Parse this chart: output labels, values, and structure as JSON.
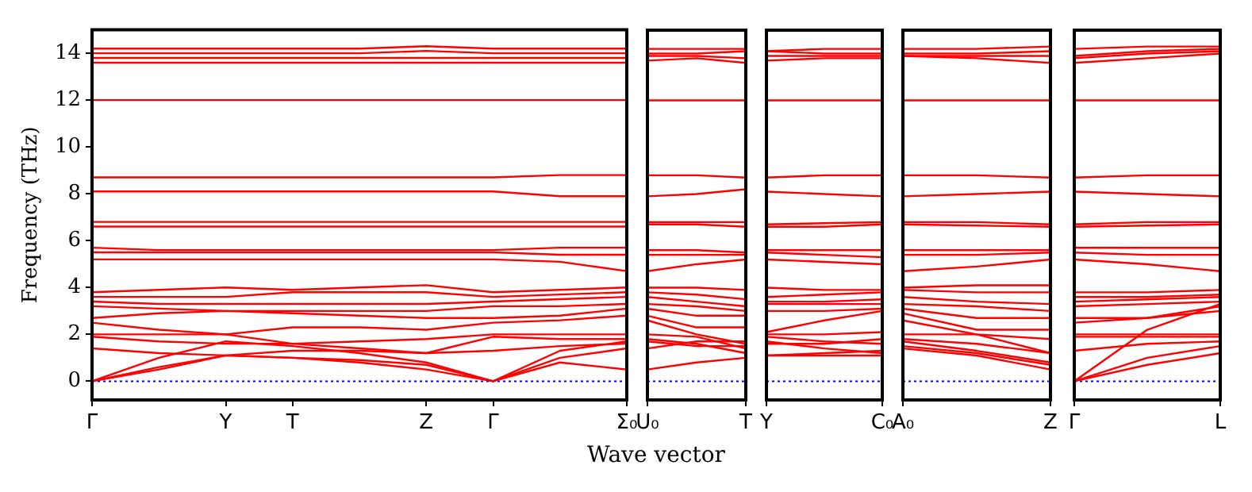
{
  "chart_data": [
    {
      "type": "line",
      "ylabel": "Frequency (THz)",
      "xlabel": "Wave vector",
      "grid": false,
      "marker": "none",
      "line_style": "solid",
      "categories": [
        "Γ",
        null,
        "Y",
        "T",
        null,
        "Z",
        "Γ",
        null,
        "Σ₀"
      ],
      "ylim": [
        -0.8,
        15
      ],
      "yticks": [
        0,
        2,
        4,
        6,
        8,
        10,
        12,
        14
      ],
      "ref_lines": [
        {
          "axis": "y",
          "value": 0,
          "color": "#0000ff",
          "line_style": "dotted"
        }
      ],
      "series": [
        {
          "color": "#ff0000",
          "values": [
            14.2,
            14.2,
            14.2,
            14.2,
            14.2,
            14.3,
            14.2,
            14.2,
            14.2
          ]
        },
        {
          "color": "#ff0000",
          "values": [
            14.0,
            14.0,
            14.0,
            14.0,
            14.0,
            14.1,
            14.0,
            14.0,
            14.0
          ]
        },
        {
          "color": "#ff0000",
          "values": [
            13.8,
            13.8,
            13.8,
            13.8,
            13.8,
            13.8,
            13.8,
            13.8,
            13.8
          ]
        },
        {
          "color": "#ff0000",
          "values": [
            13.6,
            13.6,
            13.6,
            13.6,
            13.6,
            13.6,
            13.6,
            13.6,
            13.6
          ]
        },
        {
          "color": "#ff0000",
          "values": [
            12,
            12,
            12,
            12,
            12,
            12,
            12,
            12,
            12
          ]
        },
        {
          "color": "#ff0000",
          "values": [
            8.7,
            8.7,
            8.7,
            8.7,
            8.7,
            8.7,
            8.7,
            8.8,
            8.8
          ]
        },
        {
          "color": "#ff0000",
          "values": [
            8.1,
            8.1,
            8.1,
            8.1,
            8.1,
            8.1,
            8.1,
            7.9,
            7.9
          ]
        },
        {
          "color": "#ff0000",
          "values": [
            6.8,
            6.8,
            6.8,
            6.8,
            6.8,
            6.8,
            6.8,
            6.8,
            6.8
          ]
        },
        {
          "color": "#ff0000",
          "values": [
            6.6,
            6.6,
            6.6,
            6.6,
            6.6,
            6.6,
            6.6,
            6.6,
            6.6
          ]
        },
        {
          "color": "#ff0000",
          "values": [
            5.7,
            5.6,
            5.6,
            5.6,
            5.6,
            5.6,
            5.6,
            5.7,
            5.7
          ]
        },
        {
          "color": "#ff0000",
          "values": [
            5.5,
            5.5,
            5.5,
            5.5,
            5.5,
            5.5,
            5.5,
            5.4,
            5.4
          ]
        },
        {
          "color": "#ff0000",
          "values": [
            5.2,
            5.2,
            5.2,
            5.2,
            5.2,
            5.2,
            5.2,
            5.1,
            4.7
          ]
        },
        {
          "color": "#ff0000",
          "values": [
            3.8,
            3.9,
            4.0,
            3.9,
            4.0,
            4.1,
            3.8,
            3.9,
            4.0
          ]
        },
        {
          "color": "#ff0000",
          "values": [
            3.6,
            3.6,
            3.6,
            3.8,
            3.8,
            3.8,
            3.6,
            3.7,
            3.8
          ]
        },
        {
          "color": "#ff0000",
          "values": [
            3.4,
            3.3,
            3.3,
            3.3,
            3.3,
            3.3,
            3.4,
            3.5,
            3.6
          ]
        },
        {
          "color": "#ff0000",
          "values": [
            3.2,
            3.1,
            3.0,
            3.0,
            3.0,
            3.0,
            3.2,
            3.2,
            3.3
          ]
        },
        {
          "color": "#ff0000",
          "values": [
            2.7,
            2.9,
            3.0,
            2.9,
            2.8,
            2.7,
            2.7,
            2.8,
            3.1
          ]
        },
        {
          "color": "#ff0000",
          "values": [
            2.5,
            2.2,
            2.0,
            2.3,
            2.3,
            2.2,
            2.5,
            2.6,
            2.8
          ]
        },
        {
          "color": "#ff0000",
          "values": [
            2.0,
            2.0,
            2.0,
            1.6,
            1.7,
            1.8,
            2.0,
            2.0,
            2.0
          ]
        },
        {
          "color": "#ff0000",
          "values": [
            1.9,
            1.7,
            1.6,
            1.6,
            1.4,
            1.2,
            1.9,
            1.8,
            1.8
          ]
        },
        {
          "color": "#ff0000",
          "values": [
            1.4,
            1.2,
            1.1,
            1.3,
            1.3,
            1.2,
            1.3,
            1.5,
            1.6
          ]
        },
        {
          "color": "#ff0000",
          "values": [
            0,
            1.0,
            1.7,
            1.5,
            1.2,
            0.8,
            0,
            1.3,
            1.7
          ]
        },
        {
          "color": "#ff0000",
          "values": [
            0,
            0.6,
            1.1,
            1.0,
            0.9,
            0.7,
            0,
            1.0,
            1.4
          ]
        },
        {
          "color": "#ff0000",
          "values": [
            0,
            0.5,
            1.1,
            1.0,
            0.8,
            0.5,
            0,
            0.8,
            0.5
          ]
        }
      ]
    },
    {
      "type": "line",
      "grid": false,
      "marker": "none",
      "line_style": "solid",
      "tick_labels": "x",
      "categories": [
        "U₀",
        null,
        "T"
      ],
      "ylim": [
        -0.8,
        15
      ],
      "yticks": [
        0,
        2,
        4,
        6,
        8,
        10,
        12,
        14
      ],
      "ref_lines": [
        {
          "axis": "y",
          "value": 0,
          "color": "#0000ff",
          "line_style": "dotted"
        }
      ],
      "series": [
        {
          "color": "#ff0000",
          "values": [
            14.2,
            14.2,
            14.2
          ]
        },
        {
          "color": "#ff0000",
          "values": [
            14.0,
            14.0,
            14.1
          ]
        },
        {
          "color": "#ff0000",
          "values": [
            13.9,
            13.9,
            13.8
          ]
        },
        {
          "color": "#ff0000",
          "values": [
            13.7,
            13.8,
            13.6
          ]
        },
        {
          "color": "#ff0000",
          "values": [
            12,
            12,
            12
          ]
        },
        {
          "color": "#ff0000",
          "values": [
            8.8,
            8.8,
            8.7
          ]
        },
        {
          "color": "#ff0000",
          "values": [
            7.9,
            8.0,
            8.2
          ]
        },
        {
          "color": "#ff0000",
          "values": [
            6.8,
            6.8,
            6.8
          ]
        },
        {
          "color": "#ff0000",
          "values": [
            6.7,
            6.7,
            6.6
          ]
        },
        {
          "color": "#ff0000",
          "values": [
            5.6,
            5.6,
            5.5
          ]
        },
        {
          "color": "#ff0000",
          "values": [
            5.4,
            5.4,
            5.4
          ]
        },
        {
          "color": "#ff0000",
          "values": [
            4.7,
            5.0,
            5.2
          ]
        },
        {
          "color": "#ff0000",
          "values": [
            4.0,
            4.0,
            3.9
          ]
        },
        {
          "color": "#ff0000",
          "values": [
            3.8,
            3.7,
            3.5
          ]
        },
        {
          "color": "#ff0000",
          "values": [
            3.6,
            3.4,
            3.2
          ]
        },
        {
          "color": "#ff0000",
          "values": [
            3.3,
            3.2,
            3.0
          ]
        },
        {
          "color": "#ff0000",
          "values": [
            3.1,
            2.8,
            2.8
          ]
        },
        {
          "color": "#ff0000",
          "values": [
            2.8,
            2.3,
            2.3
          ]
        },
        {
          "color": "#ff0000",
          "values": [
            2.6,
            2.0,
            1.6
          ]
        },
        {
          "color": "#ff0000",
          "values": [
            2.0,
            1.9,
            1.4
          ]
        },
        {
          "color": "#ff0000",
          "values": [
            1.8,
            1.6,
            1.2
          ]
        },
        {
          "color": "#ff0000",
          "values": [
            1.7,
            1.5,
            1.5
          ]
        },
        {
          "color": "#ff0000",
          "values": [
            1.4,
            1.7,
            1.7
          ]
        },
        {
          "color": "#ff0000",
          "values": [
            0.5,
            0.8,
            1.0
          ]
        }
      ]
    },
    {
      "type": "line",
      "grid": false,
      "marker": "none",
      "line_style": "solid",
      "tick_labels": "x",
      "categories": [
        "Y",
        null,
        "C₀"
      ],
      "ylim": [
        -0.8,
        15
      ],
      "yticks": [
        0,
        2,
        4,
        6,
        8,
        10,
        12,
        14
      ],
      "ref_lines": [
        {
          "axis": "y",
          "value": 0,
          "color": "#0000ff",
          "line_style": "dotted"
        }
      ],
      "series": [
        {
          "color": "#ff0000",
          "values": [
            14.1,
            14.2,
            14.2
          ]
        },
        {
          "color": "#ff0000",
          "values": [
            14.1,
            14.0,
            14.0
          ]
        },
        {
          "color": "#ff0000",
          "values": [
            13.9,
            13.9,
            13.9
          ]
        },
        {
          "color": "#ff0000",
          "values": [
            13.7,
            13.8,
            13.8
          ]
        },
        {
          "color": "#ff0000",
          "values": [
            12,
            12,
            12
          ]
        },
        {
          "color": "#ff0000",
          "values": [
            8.7,
            8.8,
            8.8
          ]
        },
        {
          "color": "#ff0000",
          "values": [
            8.1,
            8.0,
            7.9
          ]
        },
        {
          "color": "#ff0000",
          "values": [
            6.7,
            6.75,
            6.8
          ]
        },
        {
          "color": "#ff0000",
          "values": [
            6.6,
            6.6,
            6.7
          ]
        },
        {
          "color": "#ff0000",
          "values": [
            5.6,
            5.6,
            5.6
          ]
        },
        {
          "color": "#ff0000",
          "values": [
            5.5,
            5.4,
            5.3
          ]
        },
        {
          "color": "#ff0000",
          "values": [
            5.2,
            5.1,
            5.0
          ]
        },
        {
          "color": "#ff0000",
          "values": [
            4.0,
            3.9,
            3.9
          ]
        },
        {
          "color": "#ff0000",
          "values": [
            3.6,
            3.7,
            3.8
          ]
        },
        {
          "color": "#ff0000",
          "values": [
            3.4,
            3.4,
            3.5
          ]
        },
        {
          "color": "#ff0000",
          "values": [
            3.3,
            3.3,
            3.3
          ]
        },
        {
          "color": "#ff0000",
          "values": [
            3.0,
            3.0,
            3.1
          ]
        },
        {
          "color": "#ff0000",
          "values": [
            2.1,
            2.6,
            3.0
          ]
        },
        {
          "color": "#ff0000",
          "values": [
            2.0,
            2.0,
            2.1
          ]
        },
        {
          "color": "#ff0000",
          "values": [
            1.9,
            1.7,
            1.6
          ]
        },
        {
          "color": "#ff0000",
          "values": [
            1.6,
            1.6,
            1.8
          ]
        },
        {
          "color": "#ff0000",
          "values": [
            1.7,
            1.4,
            1.2
          ]
        },
        {
          "color": "#ff0000",
          "values": [
            1.1,
            1.2,
            1.3
          ]
        },
        {
          "color": "#ff0000",
          "values": [
            1.1,
            1.1,
            1.1
          ]
        }
      ]
    },
    {
      "type": "line",
      "grid": false,
      "marker": "none",
      "line_style": "solid",
      "tick_labels": "x",
      "categories": [
        "A₀",
        null,
        "Z"
      ],
      "ylim": [
        -0.8,
        15
      ],
      "yticks": [
        0,
        2,
        4,
        6,
        8,
        10,
        12,
        14
      ],
      "ref_lines": [
        {
          "axis": "y",
          "value": 0,
          "color": "#0000ff",
          "line_style": "dotted"
        }
      ],
      "series": [
        {
          "color": "#ff0000",
          "values": [
            14.2,
            14.2,
            14.3
          ]
        },
        {
          "color": "#ff0000",
          "values": [
            14.0,
            14.0,
            14.1
          ]
        },
        {
          "color": "#ff0000",
          "values": [
            13.9,
            13.9,
            13.9
          ]
        },
        {
          "color": "#ff0000",
          "values": [
            13.9,
            13.8,
            13.6
          ]
        },
        {
          "color": "#ff0000",
          "values": [
            12,
            12,
            12
          ]
        },
        {
          "color": "#ff0000",
          "values": [
            8.8,
            8.8,
            8.7
          ]
        },
        {
          "color": "#ff0000",
          "values": [
            7.9,
            8.0,
            8.1
          ]
        },
        {
          "color": "#ff0000",
          "values": [
            6.8,
            6.8,
            6.7
          ]
        },
        {
          "color": "#ff0000",
          "values": [
            6.7,
            6.65,
            6.6
          ]
        },
        {
          "color": "#ff0000",
          "values": [
            5.6,
            5.6,
            5.6
          ]
        },
        {
          "color": "#ff0000",
          "values": [
            5.4,
            5.4,
            5.5
          ]
        },
        {
          "color": "#ff0000",
          "values": [
            4.7,
            4.9,
            5.2
          ]
        },
        {
          "color": "#ff0000",
          "values": [
            4.0,
            4.1,
            4.1
          ]
        },
        {
          "color": "#ff0000",
          "values": [
            3.9,
            3.8,
            3.8
          ]
        },
        {
          "color": "#ff0000",
          "values": [
            3.6,
            3.4,
            3.3
          ]
        },
        {
          "color": "#ff0000",
          "values": [
            3.3,
            3.2,
            3.0
          ]
        },
        {
          "color": "#ff0000",
          "values": [
            3.1,
            2.7,
            2.7
          ]
        },
        {
          "color": "#ff0000",
          "values": [
            2.9,
            2.2,
            2.2
          ]
        },
        {
          "color": "#ff0000",
          "values": [
            2.6,
            2.0,
            1.8
          ]
        },
        {
          "color": "#ff0000",
          "values": [
            2.0,
            2.0,
            1.2
          ]
        },
        {
          "color": "#ff0000",
          "values": [
            1.8,
            1.6,
            1.2
          ]
        },
        {
          "color": "#ff0000",
          "values": [
            1.7,
            1.3,
            0.8
          ]
        },
        {
          "color": "#ff0000",
          "values": [
            1.5,
            1.2,
            0.7
          ]
        },
        {
          "color": "#ff0000",
          "values": [
            1.4,
            1.1,
            0.5
          ]
        }
      ]
    },
    {
      "type": "line",
      "grid": false,
      "marker": "none",
      "line_style": "solid",
      "tick_labels": "x",
      "categories": [
        "Γ",
        null,
        "L"
      ],
      "ylim": [
        -0.8,
        15
      ],
      "yticks": [
        0,
        2,
        4,
        6,
        8,
        10,
        12,
        14
      ],
      "ref_lines": [
        {
          "axis": "y",
          "value": 0,
          "color": "#0000ff",
          "line_style": "dotted"
        }
      ],
      "series": [
        {
          "color": "#ff0000",
          "values": [
            14.2,
            14.3,
            14.3
          ]
        },
        {
          "color": "#ff0000",
          "values": [
            13.9,
            14.1,
            14.2
          ]
        },
        {
          "color": "#ff0000",
          "values": [
            13.8,
            14.0,
            14.1
          ]
        },
        {
          "color": "#ff0000",
          "values": [
            13.6,
            13.8,
            14.0
          ]
        },
        {
          "color": "#ff0000",
          "values": [
            12,
            12,
            12
          ]
        },
        {
          "color": "#ff0000",
          "values": [
            8.7,
            8.8,
            8.8
          ]
        },
        {
          "color": "#ff0000",
          "values": [
            8.1,
            8.0,
            7.9
          ]
        },
        {
          "color": "#ff0000",
          "values": [
            6.7,
            6.8,
            6.8
          ]
        },
        {
          "color": "#ff0000",
          "values": [
            6.6,
            6.65,
            6.7
          ]
        },
        {
          "color": "#ff0000",
          "values": [
            5.7,
            5.7,
            5.7
          ]
        },
        {
          "color": "#ff0000",
          "values": [
            5.5,
            5.4,
            5.4
          ]
        },
        {
          "color": "#ff0000",
          "values": [
            5.2,
            5.0,
            4.7
          ]
        },
        {
          "color": "#ff0000",
          "values": [
            3.8,
            3.8,
            3.9
          ]
        },
        {
          "color": "#ff0000",
          "values": [
            3.6,
            3.6,
            3.7
          ]
        },
        {
          "color": "#ff0000",
          "values": [
            3.4,
            3.5,
            3.6
          ]
        },
        {
          "color": "#ff0000",
          "values": [
            3.2,
            3.3,
            3.4
          ]
        },
        {
          "color": "#ff0000",
          "values": [
            2.7,
            2.7,
            3.2
          ]
        },
        {
          "color": "#ff0000",
          "values": [
            2.5,
            2.7,
            3.0
          ]
        },
        {
          "color": "#ff0000",
          "values": [
            2.0,
            2.0,
            2.0
          ]
        },
        {
          "color": "#ff0000",
          "values": [
            1.9,
            1.9,
            1.9
          ]
        },
        {
          "color": "#ff0000",
          "values": [
            1.3,
            1.6,
            1.7
          ]
        },
        {
          "color": "#ff0000",
          "values": [
            0,
            2.2,
            3.3
          ]
        },
        {
          "color": "#ff0000",
          "values": [
            0,
            1.0,
            1.5
          ]
        },
        {
          "color": "#ff0000",
          "values": [
            0,
            0.7,
            1.2
          ]
        }
      ]
    }
  ]
}
